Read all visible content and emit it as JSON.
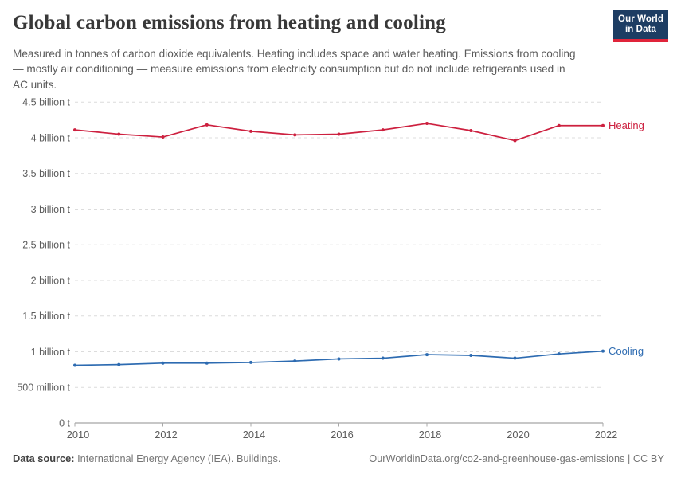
{
  "header": {
    "title": "Global carbon emissions from heating and cooling",
    "subtitle": "Measured in tonnes of carbon dioxide equivalents. Heating includes space and water heating. Emissions from cooling — mostly air conditioning — measure emissions from electricity consumption but do not include refrigerants used in AC units.",
    "logo": {
      "line1": "Our World",
      "line2": "in Data",
      "bg_color": "#1d3d63",
      "accent_color": "#e0243a"
    }
  },
  "chart_data": {
    "type": "line",
    "unit": "billion tonnes CO2-eq",
    "x": [
      2010,
      2011,
      2012,
      2013,
      2014,
      2015,
      2016,
      2017,
      2018,
      2019,
      2020,
      2021,
      2022
    ],
    "series": [
      {
        "name": "Heating",
        "color": "#cd203f",
        "values": [
          4.11,
          4.05,
          4.01,
          4.18,
          4.09,
          4.04,
          4.05,
          4.11,
          4.2,
          4.1,
          3.96,
          4.17,
          4.17
        ]
      },
      {
        "name": "Cooling",
        "color": "#2d6bb1",
        "values": [
          0.81,
          0.82,
          0.84,
          0.84,
          0.85,
          0.87,
          0.9,
          0.91,
          0.96,
          0.95,
          0.91,
          0.97,
          1.01
        ]
      }
    ],
    "title": "Global carbon emissions from heating and cooling",
    "xlabel": "",
    "ylabel": "",
    "xlim": [
      2010,
      2022
    ],
    "ylim": [
      0,
      4.5
    ],
    "grid": true,
    "legend_position": "right-of-line-end",
    "yticks": [
      {
        "value": 0,
        "label": "0 t"
      },
      {
        "value": 0.5,
        "label": "500 million t"
      },
      {
        "value": 1,
        "label": "1 billion t"
      },
      {
        "value": 1.5,
        "label": "1.5 billion t"
      },
      {
        "value": 2,
        "label": "2 billion t"
      },
      {
        "value": 2.5,
        "label": "2.5 billion t"
      },
      {
        "value": 3,
        "label": "3 billion t"
      },
      {
        "value": 3.5,
        "label": "3.5 billion t"
      },
      {
        "value": 4,
        "label": "4 billion t"
      },
      {
        "value": 4.5,
        "label": "4.5 billion t"
      }
    ],
    "xticks": [
      2010,
      2012,
      2014,
      2016,
      2018,
      2020,
      2022
    ],
    "colors": {
      "grid": "#dcdcdc",
      "axis": "#8f8f8f",
      "tick": "#a8a8a8",
      "tick_label": "#5c5c5c"
    }
  },
  "footer": {
    "source_label": "Data source:",
    "source_text": " International Energy Agency (IEA). Buildings.",
    "link_text": "OurWorldinData.org/co2-and-greenhouse-gas-emissions | CC BY"
  }
}
